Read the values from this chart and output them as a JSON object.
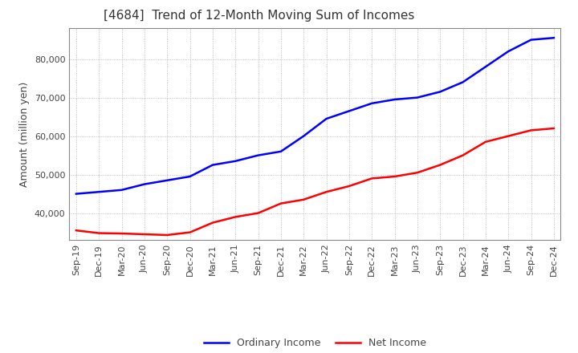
{
  "title": "[4684]  Trend of 12-Month Moving Sum of Incomes",
  "ylabel": "Amount (million yen)",
  "x_labels": [
    "Sep-19",
    "Dec-19",
    "Mar-20",
    "Jun-20",
    "Sep-20",
    "Dec-20",
    "Mar-21",
    "Jun-21",
    "Sep-21",
    "Dec-21",
    "Mar-22",
    "Jun-22",
    "Sep-22",
    "Dec-22",
    "Mar-23",
    "Jun-23",
    "Sep-23",
    "Dec-23",
    "Mar-24",
    "Jun-24",
    "Sep-24",
    "Dec-24"
  ],
  "ordinary_income": [
    45000,
    45500,
    46000,
    47500,
    48500,
    49500,
    52500,
    53500,
    55000,
    56000,
    60000,
    64500,
    66500,
    68500,
    69500,
    70000,
    71500,
    74000,
    78000,
    82000,
    85000,
    85500
  ],
  "net_income": [
    35500,
    34800,
    34700,
    34500,
    34300,
    35000,
    37500,
    39000,
    40000,
    42500,
    43500,
    45500,
    47000,
    49000,
    49500,
    50500,
    52500,
    55000,
    58500,
    60000,
    61500,
    62000
  ],
  "ordinary_color": "#0000FF",
  "net_color": "#FF0000",
  "ylim": [
    33000,
    88000
  ],
  "yticks": [
    40000,
    50000,
    60000,
    70000,
    80000
  ],
  "grid_color": "#aaaaaa",
  "background_color": "#ffffff",
  "title_fontsize": 11,
  "title_color": "#333333",
  "label_fontsize": 9,
  "tick_fontsize": 8,
  "legend_labels": [
    "Ordinary Income",
    "Net Income"
  ]
}
